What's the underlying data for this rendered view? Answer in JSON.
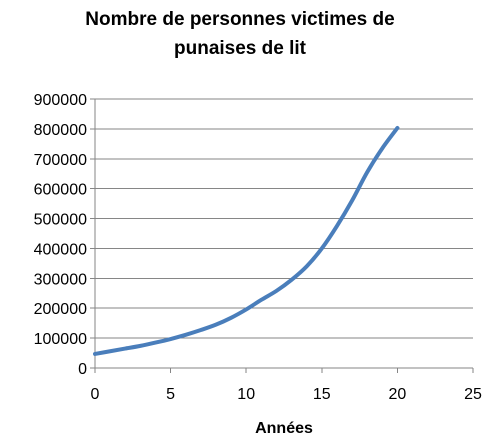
{
  "chart_data": {
    "type": "line",
    "title_lines": [
      "Nombre de personnes victimes de",
      "punaises de lit"
    ],
    "xlabel": "Années",
    "ylabel": "",
    "xlim": [
      0,
      25
    ],
    "ylim": [
      0,
      900000
    ],
    "x_ticks": [
      "0",
      "5",
      "10",
      "15",
      "20",
      "25"
    ],
    "y_ticks": [
      "0",
      "100000",
      "200000",
      "300000",
      "400000",
      "500000",
      "600000",
      "700000",
      "800000",
      "900000"
    ],
    "grid": "horizontal",
    "legend": "none",
    "series": [
      {
        "color": "#4a7ebb",
        "x": [
          0,
          1,
          2,
          3,
          4,
          5,
          6,
          7,
          8,
          9,
          10,
          11,
          12,
          13,
          14,
          15,
          16,
          17,
          18,
          19,
          20
        ],
        "values": [
          47000,
          56000,
          65000,
          74000,
          85000,
          97000,
          111000,
          127000,
          145000,
          168000,
          196000,
          228000,
          258000,
          295000,
          340000,
          400000,
          475000,
          560000,
          655000,
          735000,
          803000
        ]
      }
    ]
  }
}
